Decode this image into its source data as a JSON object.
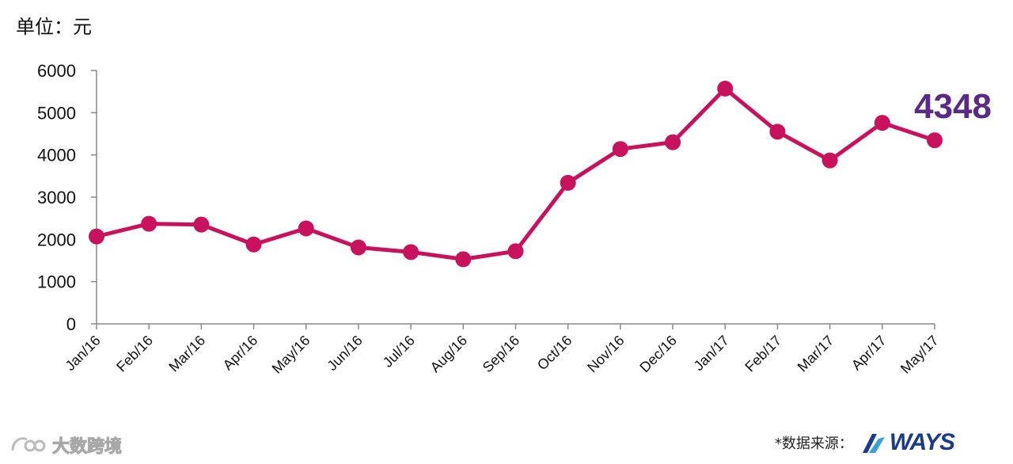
{
  "unit_label": "单位：元",
  "source_label": "*数据来源：",
  "logo_text": "WAYS",
  "watermark_text": "大数跨境",
  "colors": {
    "line": "#c8125e",
    "callout": "#5b2a86",
    "axis": "#888888",
    "logo": "#1a3a8c"
  },
  "chart_data": {
    "type": "line",
    "categories": [
      "Jan/16",
      "Feb/16",
      "Mar/16",
      "Apr/16",
      "May/16",
      "Jun/16",
      "Jul/16",
      "Aug/16",
      "Sep/16",
      "Oct/16",
      "Nov/16",
      "Dec/16",
      "Jan/17",
      "Feb/17",
      "Mar/17",
      "Apr/17",
      "May/17"
    ],
    "series": [
      {
        "values": [
          2070,
          2370,
          2350,
          1880,
          2260,
          1810,
          1700,
          1530,
          1720,
          3340,
          4140,
          4300,
          5570,
          4550,
          3870,
          4760,
          4348
        ]
      }
    ],
    "ylim": [
      0,
      6000
    ],
    "yticks": [
      0,
      1000,
      2000,
      3000,
      4000,
      5000,
      6000
    ],
    "callout": {
      "category": "May/17",
      "text": "4348"
    },
    "grid": false,
    "legend": "none"
  }
}
